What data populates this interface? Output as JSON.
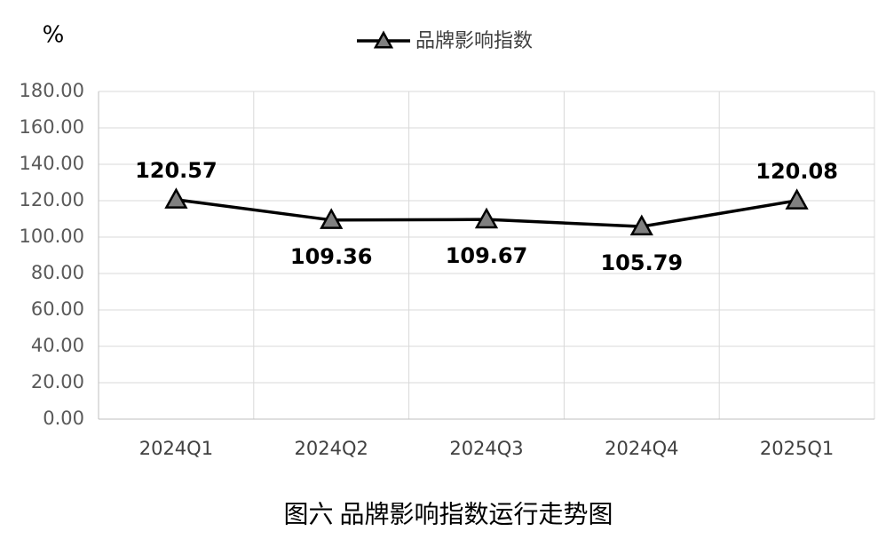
{
  "chart_data": {
    "type": "line",
    "title": "图六  品牌影响指数运行走势图",
    "ylabel": "%",
    "categories": [
      "2024Q1",
      "2024Q2",
      "2024Q3",
      "2024Q4",
      "2025Q1"
    ],
    "series": [
      {
        "name": "品牌影响指数",
        "color": "#000000",
        "marker_color": "#808080",
        "values": [
          120.57,
          109.36,
          109.67,
          105.79,
          120.08
        ]
      }
    ],
    "ylim": [
      0,
      180
    ],
    "yticks": [
      {
        "value": 0,
        "label": "0.00"
      },
      {
        "value": 20,
        "label": "20.00"
      },
      {
        "value": 40,
        "label": "40.00"
      },
      {
        "value": 60,
        "label": "60.00"
      },
      {
        "value": 80,
        "label": "80.00"
      },
      {
        "value": 100,
        "label": "100.00"
      },
      {
        "value": 120,
        "label": "120.00"
      },
      {
        "value": 140,
        "label": "140.00"
      },
      {
        "value": 160,
        "label": "160.00"
      },
      {
        "value": 180,
        "label": "180.00"
      }
    ],
    "grid": true,
    "legend": "top"
  }
}
